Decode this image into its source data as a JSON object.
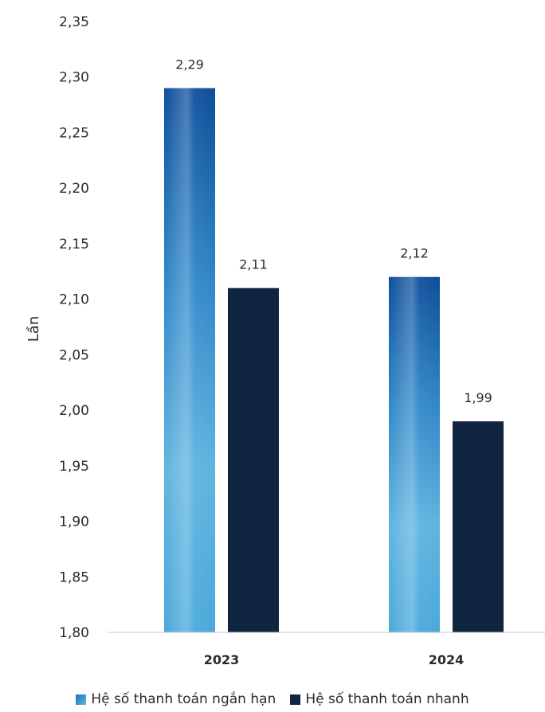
{
  "chart_data": {
    "type": "bar",
    "categories": [
      "2023",
      "2024"
    ],
    "series": [
      {
        "name": "Hệ số thanh toán ngắn hạn",
        "values": [
          2.29,
          2.12
        ],
        "labels": [
          "2,29",
          "2,12"
        ],
        "color": "#3a8fc9"
      },
      {
        "name": "Hệ số thanh toán nhanh",
        "values": [
          2.11,
          1.99
        ],
        "labels": [
          "2,11",
          "1,99"
        ],
        "color": "#0f2540"
      }
    ],
    "ylabel": "Lần",
    "xlabel": "",
    "ylim": [
      1.8,
      2.35
    ],
    "yticks": [
      "2,35",
      "2,30",
      "2,25",
      "2,20",
      "2,15",
      "2,10",
      "2,05",
      "2,00",
      "1,95",
      "1,90",
      "1,85",
      "1,80"
    ],
    "grid": false,
    "legend_position": "bottom"
  }
}
